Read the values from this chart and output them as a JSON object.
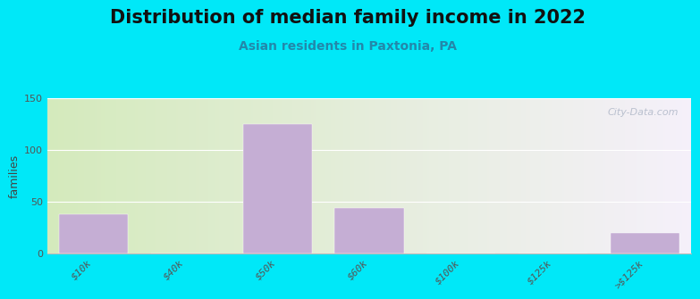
{
  "title": "Distribution of median family income in 2022",
  "subtitle": "Asian residents in Paxtonia, PA",
  "ylabel": "families",
  "categories": [
    "$10k",
    "$40k",
    "$50k",
    "$60k",
    "$100k",
    "$125k",
    ">$125k"
  ],
  "values": [
    38,
    0,
    125,
    44,
    0,
    0,
    20
  ],
  "bar_color": "#c5aed4",
  "background_outer": "#00e8f8",
  "bg_left_color": "#d4eabc",
  "bg_right_color": "#f5f0fa",
  "ylim": [
    0,
    150
  ],
  "yticks": [
    0,
    50,
    100,
    150
  ],
  "title_fontsize": 15,
  "subtitle_fontsize": 10,
  "ylabel_fontsize": 9,
  "tick_fontsize": 8,
  "watermark": "City-Data.com"
}
